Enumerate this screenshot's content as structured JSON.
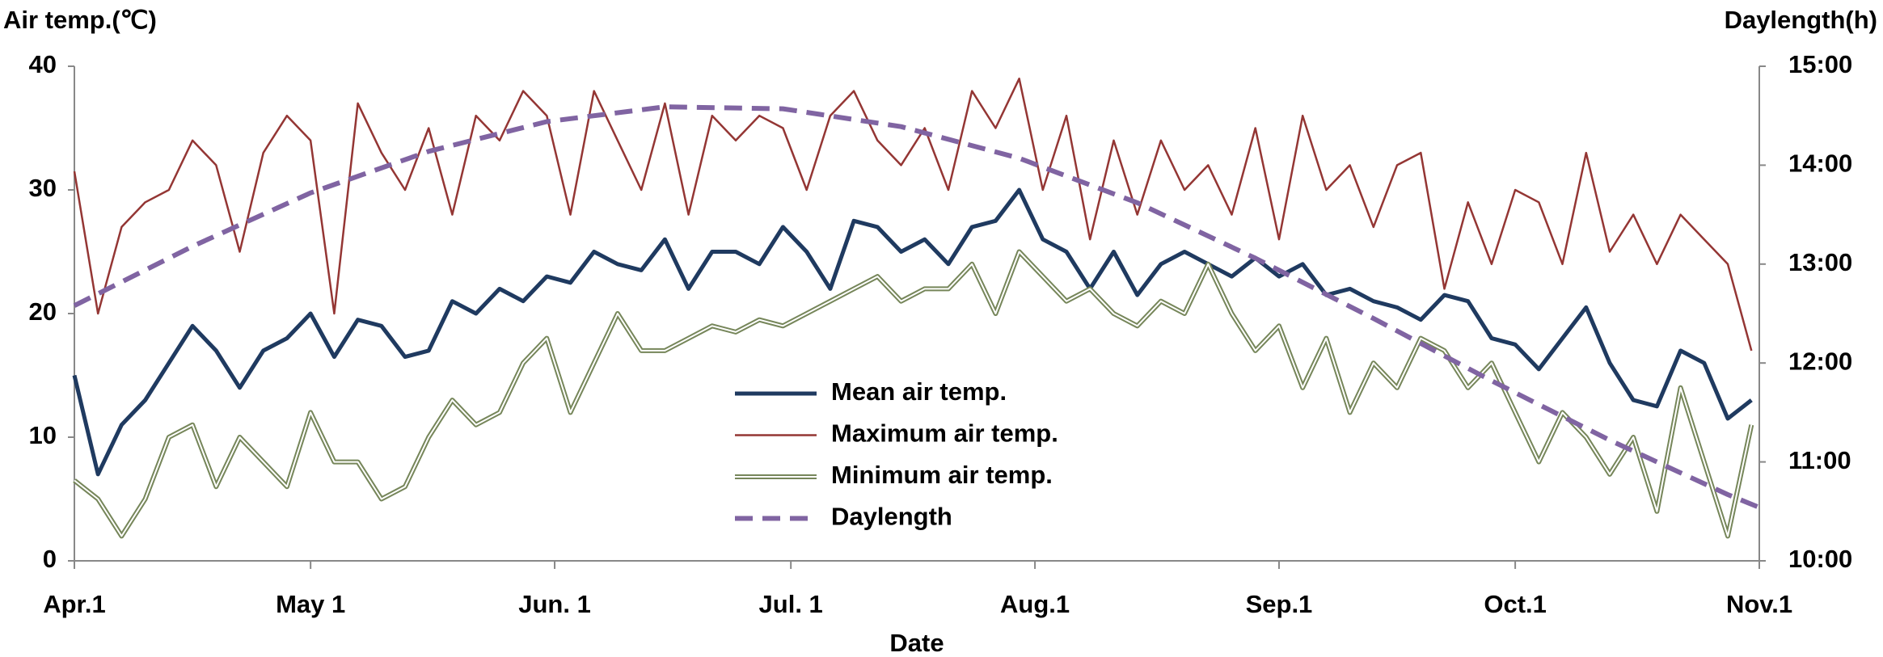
{
  "chart_data": {
    "type": "line",
    "y_title": "Air temp.(℃)",
    "y2_title": "Daylength(h)",
    "x_title": "Date",
    "x": [
      0,
      3,
      6,
      9,
      12,
      15,
      18,
      21,
      24,
      27,
      30,
      33,
      36,
      39,
      42,
      45,
      48,
      51,
      54,
      57,
      60,
      63,
      66,
      69,
      72,
      75,
      78,
      81,
      84,
      87,
      90,
      93,
      96,
      99,
      102,
      105,
      108,
      111,
      114,
      117,
      120,
      123,
      126,
      129,
      132,
      135,
      138,
      141,
      144,
      147,
      150,
      153,
      156,
      159,
      162,
      165,
      168,
      171,
      174,
      177,
      180,
      183,
      186,
      189,
      192,
      195,
      198,
      201,
      204,
      207,
      210,
      213
    ],
    "xlim": [
      0,
      214
    ],
    "xticks": [
      {
        "value": 0,
        "label": "Apr.1"
      },
      {
        "value": 30,
        "label": "May 1"
      },
      {
        "value": 61,
        "label": "Jun. 1"
      },
      {
        "value": 91,
        "label": "Jul. 1"
      },
      {
        "value": 122,
        "label": "Aug.1"
      },
      {
        "value": 153,
        "label": "Sep.1"
      },
      {
        "value": 183,
        "label": "Oct.1"
      },
      {
        "value": 214,
        "label": "Nov.1"
      }
    ],
    "ylim": [
      0,
      40
    ],
    "yticks": [
      0,
      10,
      20,
      30,
      40
    ],
    "y2lim": [
      10,
      15
    ],
    "y2ticks": [
      {
        "value": 10,
        "label": "10:00"
      },
      {
        "value": 11,
        "label": "11:00"
      },
      {
        "value": 12,
        "label": "12:00"
      },
      {
        "value": 13,
        "label": "13:00"
      },
      {
        "value": 14,
        "label": "14:00"
      },
      {
        "value": 15,
        "label": "15:00"
      }
    ],
    "series": [
      {
        "name": "Mean air temp.",
        "color": "#1f3a60",
        "style": "solid",
        "values": [
          15,
          7,
          11,
          13,
          16,
          19,
          17,
          14,
          17,
          18,
          20,
          16.5,
          19.5,
          19,
          16.5,
          17,
          21,
          20,
          22,
          21,
          23,
          22.5,
          25,
          24,
          23.5,
          26,
          22,
          25,
          25,
          24,
          27,
          25,
          22,
          27.5,
          27,
          25,
          26,
          24,
          27,
          27.5,
          30,
          26,
          25,
          22,
          25,
          21.5,
          24,
          25,
          24,
          23,
          24.5,
          23,
          24,
          21.5,
          22,
          21,
          20.5,
          19.5,
          21.5,
          21,
          18,
          17.5,
          15.5,
          18,
          20.5,
          16,
          13,
          12.5,
          17,
          16,
          11.5,
          13
        ]
      },
      {
        "name": "Maximum air temp.",
        "color": "#943634",
        "style": "solid",
        "values": [
          31.5,
          20,
          27,
          29,
          30,
          34,
          32,
          25,
          33,
          36,
          34,
          20,
          37,
          33,
          30,
          35,
          28,
          36,
          34,
          38,
          36,
          28,
          38,
          34,
          30,
          37,
          28,
          36,
          34,
          36,
          35,
          30,
          36,
          38,
          34,
          32,
          35,
          30,
          38,
          35,
          39,
          30,
          36,
          26,
          34,
          28,
          34,
          30,
          32,
          28,
          35,
          26,
          36,
          30,
          32,
          27,
          32,
          33,
          22,
          29,
          24,
          30,
          29,
          24,
          33,
          25,
          28,
          24,
          28,
          26,
          24,
          17
        ]
      },
      {
        "name": "Minimum air temp.",
        "color": "#76865a",
        "style": "double",
        "values": [
          6.5,
          5,
          2,
          5,
          10,
          11,
          6,
          10,
          8,
          6,
          12,
          8,
          8,
          5,
          6,
          10,
          13,
          11,
          12,
          16,
          18,
          12,
          16,
          20,
          17,
          17,
          18,
          19,
          18.5,
          19.5,
          19,
          20,
          21,
          22,
          23,
          21,
          22,
          22,
          24,
          20,
          25,
          23,
          21,
          22,
          20,
          19,
          21,
          20,
          24,
          20,
          17,
          19,
          14,
          18,
          12,
          16,
          14,
          18,
          17,
          14,
          16,
          12,
          8,
          12,
          10,
          7,
          10,
          4,
          14,
          8,
          2,
          11
        ]
      },
      {
        "name": "Daylength",
        "color": "#8064a2",
        "style": "dashed",
        "axis": "y2",
        "x": [
          0,
          15,
          30,
          45,
          60,
          75,
          90,
          105,
          120,
          135,
          150,
          165,
          180,
          195,
          210,
          214
        ],
        "values": [
          12.58,
          13.18,
          13.72,
          14.14,
          14.44,
          14.59,
          14.57,
          14.39,
          14.07,
          13.62,
          13.06,
          12.45,
          11.82,
          11.22,
          10.67,
          10.54
        ]
      }
    ]
  }
}
